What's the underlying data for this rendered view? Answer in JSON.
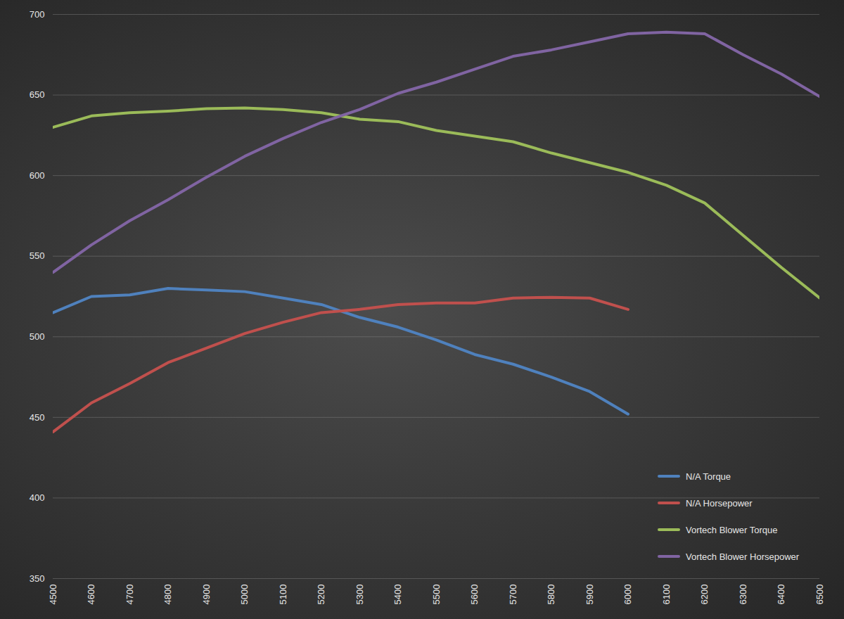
{
  "chart_data": {
    "type": "line",
    "x": [
      4500,
      4600,
      4700,
      4800,
      4900,
      5000,
      5100,
      5200,
      5300,
      5400,
      5500,
      5600,
      5700,
      5800,
      5900,
      6000,
      6100,
      6200,
      6300,
      6400,
      6500
    ],
    "series": [
      {
        "name": "N/A Torque",
        "color": "#4f81bd",
        "values": [
          515,
          525,
          526,
          530,
          529,
          528,
          524,
          520,
          512,
          506,
          498,
          489,
          483,
          475,
          466,
          452,
          null,
          null,
          null,
          null,
          null
        ]
      },
      {
        "name": "N/A Horsepower",
        "color": "#c0504d",
        "values": [
          441,
          459,
          471,
          484,
          493,
          502,
          509,
          515,
          517,
          520,
          521,
          521,
          524,
          524.5,
          524,
          517,
          null,
          null,
          null,
          null,
          null
        ]
      },
      {
        "name": "Vortech Blower Torque",
        "color": "#9bbb59",
        "values": [
          630,
          637,
          639,
          640,
          641.5,
          642,
          641,
          639,
          635,
          633.5,
          628,
          624.5,
          621,
          614,
          608,
          602,
          594,
          583,
          563,
          543,
          524
        ]
      },
      {
        "name": "Vortech Blower Horsepower",
        "color": "#8064a2",
        "values": [
          540,
          557,
          572,
          585,
          599,
          612,
          623,
          633,
          641,
          651,
          658,
          666,
          674,
          678,
          683,
          688,
          689,
          688,
          675,
          663,
          649
        ]
      }
    ],
    "xlim": [
      4500,
      6500
    ],
    "xticks": [
      4500,
      4600,
      4700,
      4800,
      4900,
      5000,
      5100,
      5200,
      5300,
      5400,
      5500,
      5600,
      5700,
      5800,
      5900,
      6000,
      6100,
      6200,
      6300,
      6400,
      6500
    ],
    "ylim": [
      350,
      700
    ],
    "yticks": [
      350,
      400,
      450,
      500,
      550,
      600,
      650,
      700
    ],
    "grid": true,
    "legend": "bottom-right"
  }
}
